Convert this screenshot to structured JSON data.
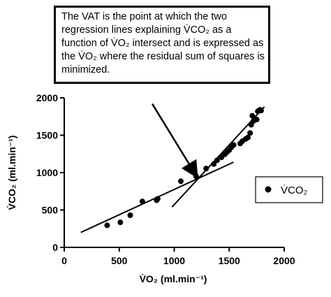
{
  "annotation": {
    "lines": [
      "The VAT is the point at which the two",
      "regression lines explaining V̇CO₂ as a",
      "function of  V̇O₂ intersect and is expressed as",
      "the V̇O₂ where the residual sum of squares is",
      "minimized."
    ]
  },
  "chart_data": {
    "type": "scatter",
    "xlabel": "V̇O₂ (ml.min⁻¹)",
    "ylabel": "V̇CO₂ (ml.min⁻¹)",
    "xlim": [
      0,
      2000
    ],
    "ylim": [
      0,
      2000
    ],
    "xticks": [
      "0",
      "500",
      "1000",
      "1500",
      "2000"
    ],
    "yticks": [
      "0",
      "500",
      "1000",
      "1500",
      "2000"
    ],
    "legend_position": "right",
    "grid": false,
    "series": [
      {
        "name": "V̇CO₂",
        "marker": "filled-circle",
        "color": "#000000",
        "points": [
          [
            390,
            295
          ],
          [
            510,
            335
          ],
          [
            600,
            430
          ],
          [
            710,
            615
          ],
          [
            840,
            630
          ],
          [
            850,
            650
          ],
          [
            1060,
            885
          ],
          [
            1200,
            950
          ],
          [
            1290,
            1055
          ],
          [
            1360,
            1115
          ],
          [
            1390,
            1165
          ],
          [
            1430,
            1205
          ],
          [
            1460,
            1245
          ],
          [
            1480,
            1275
          ],
          [
            1500,
            1300
          ],
          [
            1520,
            1340
          ],
          [
            1540,
            1370
          ],
          [
            1600,
            1390
          ],
          [
            1620,
            1420
          ],
          [
            1650,
            1450
          ],
          [
            1670,
            1470
          ],
          [
            1690,
            1530
          ],
          [
            1700,
            1640
          ],
          [
            1710,
            1760
          ],
          [
            1720,
            1690
          ],
          [
            1750,
            1710
          ],
          [
            1760,
            1820
          ],
          [
            1780,
            1840
          ],
          [
            1790,
            1830
          ]
        ]
      }
    ],
    "regression_lines": [
      {
        "from": [
          150,
          200
        ],
        "to": [
          1540,
          1140
        ]
      },
      {
        "from": [
          980,
          540
        ],
        "to": [
          1820,
          1880
        ]
      }
    ],
    "arrow": {
      "from": [
        800,
        1920
      ],
      "to": [
        1200,
        960
      ]
    }
  }
}
